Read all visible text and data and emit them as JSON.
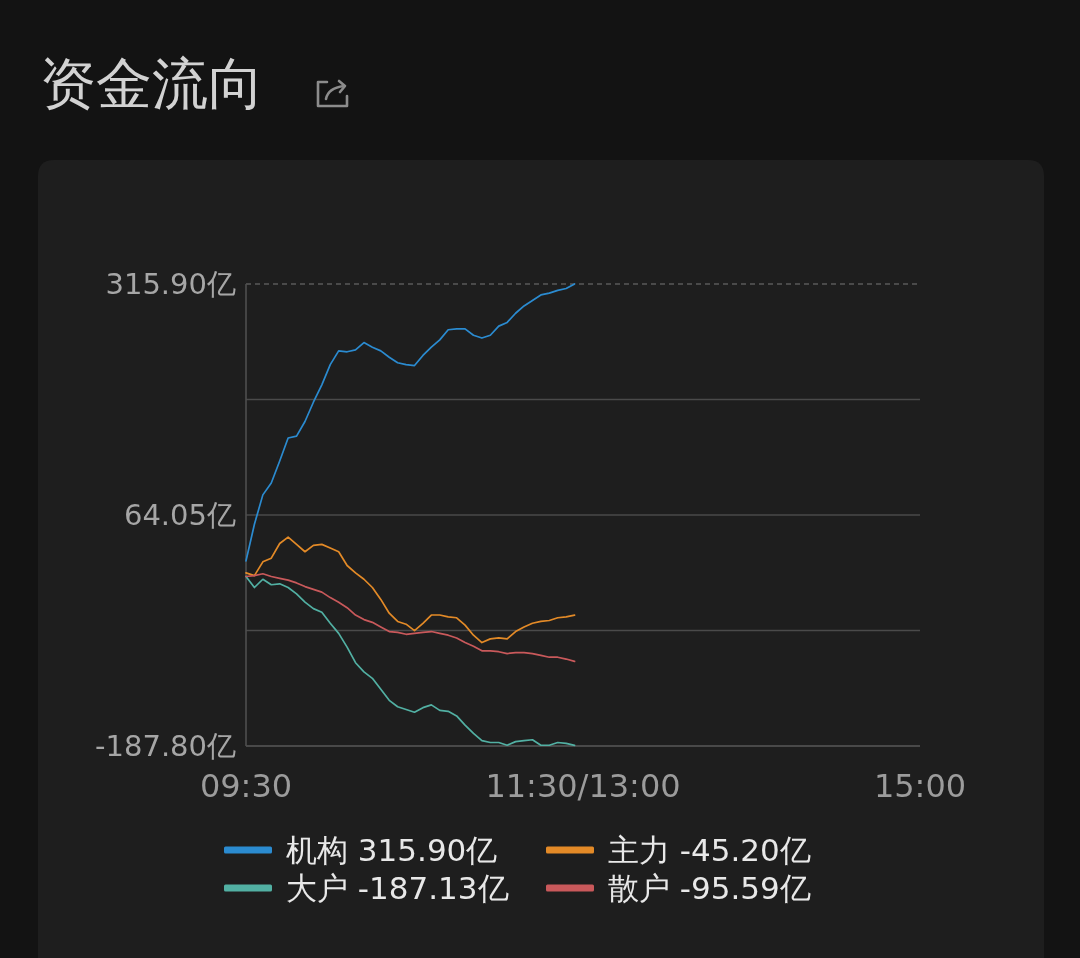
{
  "chart_data": {
    "type": "line",
    "title": "资金流向",
    "categories": [
      "09:30",
      null,
      null,
      null,
      null,
      null,
      null,
      null,
      null,
      null,
      null,
      null,
      null,
      null,
      null,
      null,
      null,
      null,
      null,
      null,
      null,
      null,
      null,
      null,
      null,
      null,
      null,
      null,
      null,
      null,
      null,
      null,
      null,
      null,
      null,
      null,
      null,
      null,
      null,
      null,
      "11:30/13:00",
      null,
      null,
      null,
      null,
      null,
      null,
      null,
      null,
      null,
      null,
      null,
      null,
      null,
      null,
      null,
      null,
      null,
      null,
      null,
      null,
      null,
      null,
      null,
      null,
      null,
      null,
      null,
      null,
      null,
      null,
      null,
      null,
      null,
      null,
      null,
      null,
      null,
      null,
      null,
      "15:00"
    ],
    "ylim": [
      -187.8,
      315.9
    ],
    "yticks": [
      {
        "value": 315.9,
        "label": "315.90亿"
      },
      {
        "value": 189.975,
        "label": null
      },
      {
        "value": 64.05,
        "label": "64.05亿"
      },
      {
        "value": -61.875,
        "label": null
      },
      {
        "value": -187.8,
        "label": "-187.80亿"
      }
    ],
    "grid": "y",
    "legend": "bottom",
    "line_style": "solid",
    "series": [
      {
        "name": "机构 315.90亿",
        "color": "#2b8bd0",
        "values": [
          14,
          54,
          86,
          99,
          123,
          148,
          150,
          166,
          187,
          206,
          228,
          243,
          242,
          244,
          252,
          247,
          243,
          236,
          230,
          228,
          227,
          238,
          247,
          255,
          266,
          267,
          267,
          260,
          257,
          260,
          270,
          274,
          284,
          292,
          298,
          304,
          306,
          309,
          311,
          315.9,
          null,
          null,
          null,
          null,
          null,
          null,
          null,
          null,
          null,
          null,
          null,
          null,
          null,
          null,
          null,
          null,
          null,
          null,
          null,
          null,
          null,
          null,
          null,
          null,
          null,
          null,
          null,
          null,
          null,
          null,
          null,
          null,
          null,
          null,
          null,
          null,
          null,
          null,
          null,
          null,
          null
        ]
      },
      {
        "name": "主力 -45.20亿",
        "color": "#e38a27",
        "values": [
          1,
          -2,
          13,
          17,
          33,
          40,
          32,
          24,
          31,
          32,
          28,
          24,
          9,
          1,
          -6,
          -15,
          -28,
          -43,
          -52,
          -55,
          -62,
          -54,
          -45,
          -45,
          -47,
          -48,
          -56,
          -67,
          -75,
          -71,
          -70,
          -71,
          -63,
          -58,
          -54,
          -52,
          -51,
          -48,
          -47,
          -45.2,
          null,
          null,
          null,
          null,
          null,
          null,
          null,
          null,
          null,
          null,
          null,
          null,
          null,
          null,
          null,
          null,
          null,
          null,
          null,
          null,
          null,
          null,
          null,
          null,
          null,
          null,
          null,
          null,
          null,
          null,
          null,
          null,
          null,
          null,
          null,
          null,
          null,
          null,
          null,
          null,
          null
        ]
      },
      {
        "name": "大户 -187.13亿",
        "color": "#52b0a3",
        "values": [
          -3,
          -15,
          -6,
          -12,
          -11,
          -15,
          -22,
          -31,
          -38,
          -42,
          -54,
          -65,
          -80,
          -97,
          -107,
          -114,
          -126,
          -138,
          -145,
          -148,
          -151,
          -146,
          -143,
          -149,
          -150,
          -155,
          -165,
          -174,
          -182,
          -184,
          -184,
          -187,
          -183,
          -182,
          -181,
          -187,
          -187,
          -184,
          -185,
          -187.13,
          null,
          null,
          null,
          null,
          null,
          null,
          null,
          null,
          null,
          null,
          null,
          null,
          null,
          null,
          null,
          null,
          null,
          null,
          null,
          null,
          null,
          null,
          null,
          null,
          null,
          null,
          null,
          null,
          null,
          null,
          null,
          null,
          null,
          null,
          null,
          null,
          null,
          null,
          null,
          null,
          null
        ]
      },
      {
        "name": "散户 -95.59亿",
        "color": "#c9595b",
        "values": [
          -3,
          -2,
          0,
          -3,
          -5,
          -7,
          -10,
          -14,
          -17,
          -20,
          -26,
          -31,
          -37,
          -45,
          -50,
          -53,
          -58,
          -63,
          -64,
          -66,
          -65,
          -64,
          -63,
          -65,
          -67,
          -70,
          -75,
          -79,
          -84,
          -84,
          -85,
          -87,
          -86,
          -86,
          -87,
          -89,
          -91,
          -91,
          -93,
          -95.59,
          null,
          null,
          null,
          null,
          null,
          null,
          null,
          null,
          null,
          null,
          null,
          null,
          null,
          null,
          null,
          null,
          null,
          null,
          null,
          null,
          null,
          null,
          null,
          null,
          null,
          null,
          null,
          null,
          null,
          null,
          null,
          null,
          null,
          null,
          null,
          null,
          null,
          null,
          null,
          null,
          null
        ]
      }
    ]
  }
}
